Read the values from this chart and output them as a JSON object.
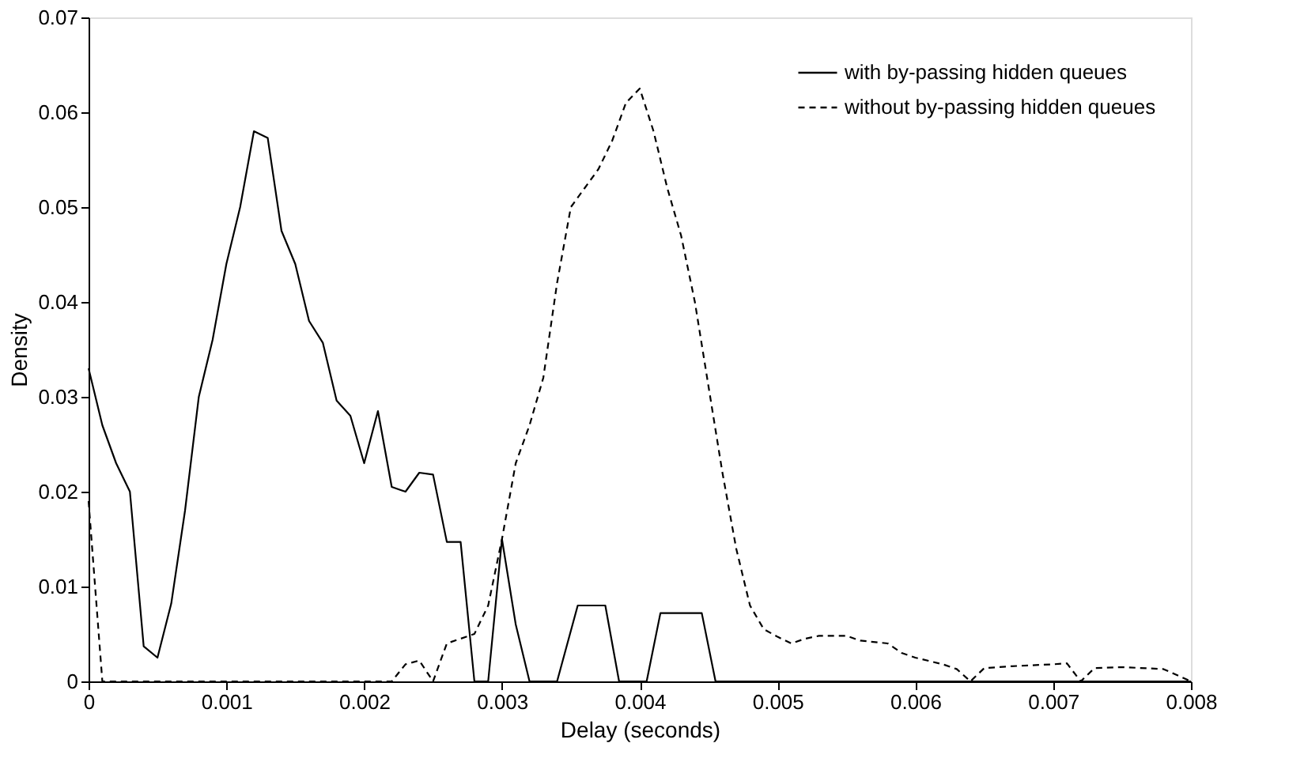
{
  "chart_data": {
    "type": "line",
    "xlabel": "Delay (seconds)",
    "ylabel": "Density",
    "xlim": [
      0,
      0.008
    ],
    "xticks": [
      0,
      0.001,
      0.002,
      0.003,
      0.004,
      0.005,
      0.006,
      0.007,
      0.008
    ],
    "ylim": [
      0,
      0.07
    ],
    "yticks": [
      0,
      0.01,
      0.02,
      0.03,
      0.04,
      0.05,
      0.06,
      0.07
    ],
    "grid": false,
    "legend": "top right",
    "marker": "none",
    "series": [
      {
        "name": "with by-passing hidden queues",
        "color": "#000000",
        "line_style": "solid",
        "x": [
          0,
          0.0001,
          0.0002,
          0.0003,
          0.0004,
          0.0005,
          0.0006,
          0.0007,
          0.0008,
          0.0009,
          0.001,
          0.0011,
          0.0012,
          0.0013,
          0.0014,
          0.0015,
          0.0016,
          0.0017,
          0.0018,
          0.0019,
          0.002,
          0.0021,
          0.0022,
          0.0023,
          0.0024,
          0.0025,
          0.0026,
          0.0027,
          0.0028,
          0.0029,
          0.003,
          0.0031,
          0.0032,
          0.0034,
          0.00355,
          0.00375,
          0.00385,
          0.00405,
          0.00415,
          0.00445,
          0.00455,
          0.008
        ],
        "values": [
          0.033,
          0.027,
          0.023,
          0.02,
          0.0037,
          0.0025,
          0.0082,
          0.018,
          0.03,
          0.036,
          0.044,
          0.05,
          0.058,
          0.0573,
          0.0475,
          0.044,
          0.038,
          0.0357,
          0.0296,
          0.028,
          0.023,
          0.0285,
          0.0205,
          0.02,
          0.022,
          0.0218,
          0.0147,
          0.0147,
          0,
          0,
          0.015,
          0.006,
          0,
          0,
          0.008,
          0.008,
          0,
          0,
          0.0072,
          0.0072,
          0,
          0
        ]
      },
      {
        "name": "without by-passing hidden queues",
        "color": "#000000",
        "line_style": "dashed",
        "x": [
          0,
          0.0001,
          0.0022,
          0.0023,
          0.0024,
          0.0025,
          0.0026,
          0.0027,
          0.0028,
          0.0029,
          0.003,
          0.0031,
          0.0032,
          0.0033,
          0.0034,
          0.0035,
          0.0036,
          0.0037,
          0.0038,
          0.0039,
          0.004,
          0.0041,
          0.0042,
          0.0043,
          0.0044,
          0.0045,
          0.0046,
          0.0047,
          0.0048,
          0.0049,
          0.005,
          0.0051,
          0.0052,
          0.0053,
          0.0055,
          0.0056,
          0.0058,
          0.0059,
          0.006,
          0.0062,
          0.0063,
          0.0064,
          0.0065,
          0.0067,
          0.007,
          0.0071,
          0.0072,
          0.0073,
          0.0075,
          0.0078,
          0.008
        ],
        "values": [
          0.019,
          0,
          0,
          0.0018,
          0.0022,
          0,
          0.004,
          0.0045,
          0.005,
          0.008,
          0.015,
          0.023,
          0.027,
          0.032,
          0.042,
          0.05,
          0.052,
          0.054,
          0.057,
          0.061,
          0.0625,
          0.058,
          0.052,
          0.047,
          0.04,
          0.031,
          0.022,
          0.014,
          0.008,
          0.0055,
          0.0047,
          0.004,
          0.0045,
          0.0048,
          0.0048,
          0.0043,
          0.004,
          0.003,
          0.0025,
          0.0018,
          0.0013,
          0,
          0.0014,
          0.0016,
          0.0018,
          0.0019,
          0,
          0.0014,
          0.0015,
          0.0013,
          0
        ]
      }
    ]
  }
}
